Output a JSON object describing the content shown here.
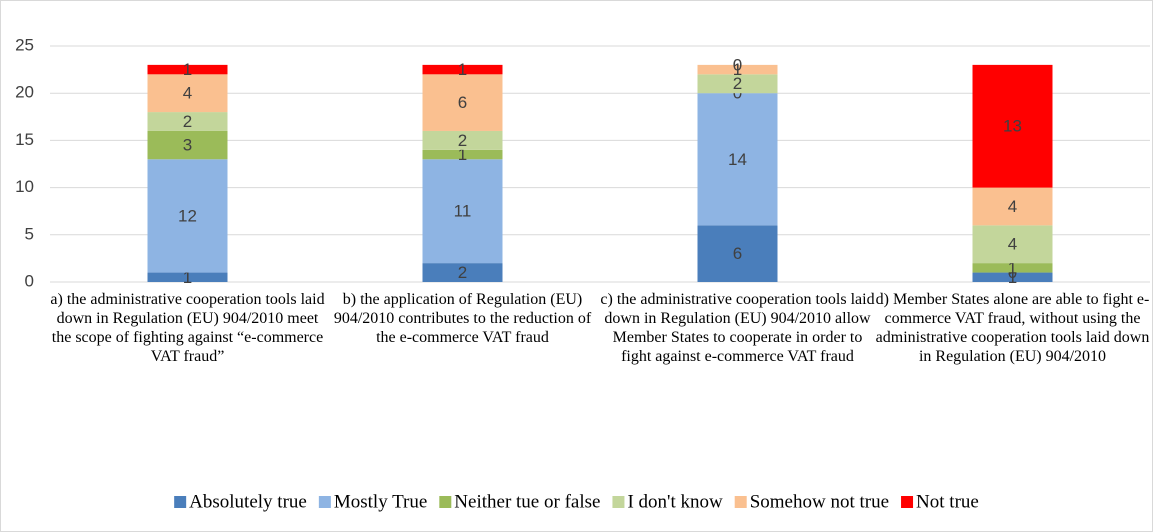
{
  "chart_data": {
    "type": "stacked_bar",
    "categories": [
      "a) the administrative cooperation tools laid down in Regulation (EU) 904/2010 meet the scope of fighting against “e-commerce VAT fraud”",
      "b) the application of Regulation (EU) 904/2010 contributes to the reduction of the e-commerce VAT fraud",
      "c) the administrative cooperation tools laid down in Regulation (EU) 904/2010 allow Member States to cooperate in order to fight against e-commerce VAT fraud",
      "d) Member States alone are able to fight e-commerce VAT fraud, without using the administrative cooperation tools laid down in Regulation (EU) 904/2010"
    ],
    "series": [
      {
        "name": "Absolutely true",
        "color": "#4a7ebb",
        "values": [
          1,
          2,
          6,
          1
        ]
      },
      {
        "name": "Mostly True",
        "color": "#8eb4e3",
        "values": [
          12,
          11,
          14,
          0
        ]
      },
      {
        "name": "Neither tue or false",
        "color": "#9bbb59",
        "values": [
          3,
          1,
          0,
          1
        ]
      },
      {
        "name": "I don't know",
        "color": "#c3d69b",
        "values": [
          2,
          2,
          2,
          4
        ]
      },
      {
        "name": "Somehow not true",
        "color": "#fac090",
        "values": [
          4,
          6,
          1,
          4
        ]
      },
      {
        "name": "Not true",
        "color": "#ff0000",
        "values": [
          1,
          1,
          0,
          13
        ]
      }
    ],
    "ylim": [
      0,
      25
    ],
    "yticks": [
      0,
      5,
      10,
      15,
      20,
      25
    ],
    "grid": true,
    "legend": "bottom"
  }
}
